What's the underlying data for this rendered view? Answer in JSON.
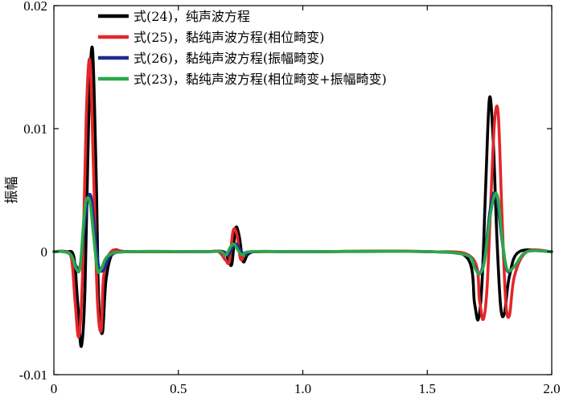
{
  "chart_data": {
    "type": "line",
    "title": "",
    "xlabel": "",
    "ylabel": "振幅",
    "xlim": [
      0,
      2.0
    ],
    "ylim": [
      -0.01,
      0.02
    ],
    "xticks": [
      0,
      0.5,
      1.0,
      1.5,
      2.0
    ],
    "xtick_labels": [
      "0",
      "0.5",
      "1.0",
      "1.5",
      "2.0"
    ],
    "yticks": [
      -0.01,
      0,
      0.01,
      0.02
    ],
    "ytick_labels": [
      "-0.01",
      "0",
      "0.01",
      "0.02"
    ],
    "grid": false,
    "legend_position": "top-left",
    "series": [
      {
        "name": "式(24)，纯声波方程",
        "color": "#000000",
        "x": [
          0,
          0.05,
          0.08,
          0.095,
          0.11,
          0.125,
          0.14,
          0.155,
          0.17,
          0.18,
          0.195,
          0.21,
          0.24,
          0.3,
          0.6,
          0.68,
          0.7,
          0.715,
          0.73,
          0.745,
          0.76,
          0.78,
          0.82,
          1.0,
          1.5,
          1.66,
          1.69,
          1.705,
          1.72,
          1.735,
          1.75,
          1.765,
          1.78,
          1.795,
          1.81,
          1.83,
          1.87,
          2.0
        ],
        "y": [
          0,
          0,
          -0.0004,
          -0.004,
          -0.0077,
          -0.003,
          0.011,
          0.0165,
          0.006,
          -0.004,
          -0.0066,
          -0.0022,
          0,
          0,
          0,
          0,
          -0.0006,
          -0.001,
          0.0019,
          0.0012,
          -0.0008,
          -0.0002,
          0,
          0,
          0,
          -0.0005,
          -0.0042,
          -0.0055,
          -0.0025,
          0.0055,
          0.0125,
          0.009,
          0.001,
          -0.0045,
          -0.005,
          -0.002,
          0,
          0
        ]
      },
      {
        "name": "式(25)，黏纯声波方程(相位畸变)",
        "color": "#e3262b",
        "x": [
          0,
          0.04,
          0.07,
          0.085,
          0.1,
          0.115,
          0.13,
          0.145,
          0.16,
          0.175,
          0.19,
          0.2,
          0.23,
          0.3,
          0.6,
          0.66,
          0.69,
          0.705,
          0.72,
          0.735,
          0.75,
          0.77,
          0.8,
          1.0,
          1.5,
          1.68,
          1.71,
          1.725,
          1.74,
          1.755,
          1.77,
          1.785,
          1.8,
          1.815,
          1.83,
          1.85,
          1.9,
          2.0
        ],
        "y": [
          0,
          0,
          -0.0005,
          -0.004,
          -0.0069,
          -0.002,
          0.011,
          0.0155,
          0.006,
          -0.004,
          -0.0064,
          -0.002,
          0,
          0,
          0,
          0,
          -0.0007,
          -0.0008,
          0.0017,
          0.0014,
          -0.0006,
          -0.0002,
          0,
          0,
          0,
          -0.0005,
          -0.004,
          -0.0055,
          -0.003,
          0.004,
          0.0105,
          0.0112,
          0.003,
          -0.004,
          -0.0052,
          -0.002,
          0,
          0
        ]
      },
      {
        "name": "式(26)，黏纯声波方程(振幅畸变)",
        "color": "#1f2d8c",
        "x": [
          0,
          0.04,
          0.07,
          0.09,
          0.105,
          0.12,
          0.135,
          0.15,
          0.165,
          0.18,
          0.2,
          0.23,
          0.3,
          0.6,
          0.68,
          0.7,
          0.72,
          0.735,
          0.75,
          0.77,
          0.8,
          1.0,
          1.5,
          1.66,
          1.69,
          1.71,
          1.73,
          1.75,
          1.765,
          1.78,
          1.8,
          1.82,
          1.85,
          1.9,
          2.0
        ],
        "y": [
          0,
          0,
          -0.0003,
          -0.0012,
          -0.0012,
          0.0015,
          0.0042,
          0.0044,
          0.0015,
          -0.0012,
          -0.0015,
          -0.0003,
          0,
          0,
          0,
          -0.0003,
          0.0004,
          0.0006,
          0.0001,
          -0.0003,
          0,
          0,
          0,
          -0.0003,
          -0.0012,
          -0.0018,
          -0.0005,
          0.003,
          0.0047,
          0.0042,
          0.001,
          -0.0015,
          -0.0012,
          0,
          0
        ]
      },
      {
        "name": "式(23)，黏纯声波方程(相位畸变+振幅畸变)",
        "color": "#2aa84a",
        "x": [
          0,
          0.04,
          0.07,
          0.09,
          0.105,
          0.12,
          0.13,
          0.145,
          0.16,
          0.175,
          0.19,
          0.22,
          0.3,
          0.6,
          0.67,
          0.69,
          0.71,
          0.725,
          0.74,
          0.76,
          0.79,
          1.0,
          1.5,
          1.66,
          1.69,
          1.71,
          1.73,
          1.75,
          1.77,
          1.785,
          1.8,
          1.82,
          1.85,
          1.9,
          2.0
        ],
        "y": [
          0,
          0,
          -0.0003,
          -0.0014,
          -0.0013,
          0.0025,
          0.0042,
          0.004,
          0.0012,
          -0.0015,
          -0.0014,
          -0.0003,
          0,
          0,
          0,
          -0.0003,
          0.0004,
          0.0006,
          0.0001,
          -0.0003,
          0,
          0,
          0,
          -0.0003,
          -0.0013,
          -0.0018,
          -0.0008,
          0.0025,
          0.0046,
          0.0042,
          0.0012,
          -0.0014,
          -0.0012,
          0,
          0
        ]
      }
    ]
  }
}
